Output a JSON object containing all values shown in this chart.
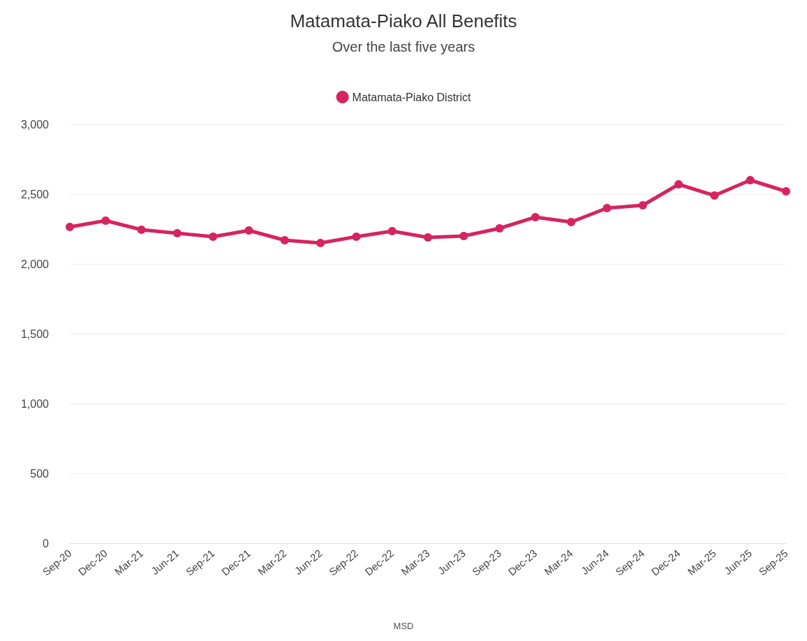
{
  "chart_data": {
    "type": "line",
    "title": "Matamata-Piako All Benefits",
    "subtitle": "Over the last five years",
    "categories": [
      "Sep-20",
      "Dec-20",
      "Mar-21",
      "Jun-21",
      "Sep-21",
      "Dec-21",
      "Mar-22",
      "Jun-22",
      "Sep-22",
      "Dec-22",
      "Mar-23",
      "Jun-23",
      "Sep-23",
      "Dec-23",
      "Mar-24",
      "Jun-24",
      "Sep-24",
      "Dec-24",
      "Mar-25",
      "Jun-25",
      "Sep-25"
    ],
    "series": [
      {
        "name": "Matamata-Piako District",
        "color": "#d6245e",
        "values": [
          2265,
          2310,
          2245,
          2220,
          2195,
          2240,
          2170,
          2150,
          2195,
          2235,
          2190,
          2200,
          2255,
          2335,
          2300,
          2400,
          2420,
          2570,
          2490,
          2600,
          2520
        ]
      }
    ],
    "ylim": [
      0,
      3000
    ],
    "yticks": [
      {
        "value": 0,
        "label": "0"
      },
      {
        "value": 500,
        "label": "500"
      },
      {
        "value": 1000,
        "label": "1,000"
      },
      {
        "value": 1500,
        "label": "1,500"
      },
      {
        "value": 2000,
        "label": "2,000"
      },
      {
        "value": 2500,
        "label": "2,500"
      },
      {
        "value": 3000,
        "label": "3,000"
      }
    ],
    "grid": "y",
    "legend": "top",
    "marker": "circle",
    "line_style": "solid",
    "annotations": [
      "MSD"
    ]
  }
}
